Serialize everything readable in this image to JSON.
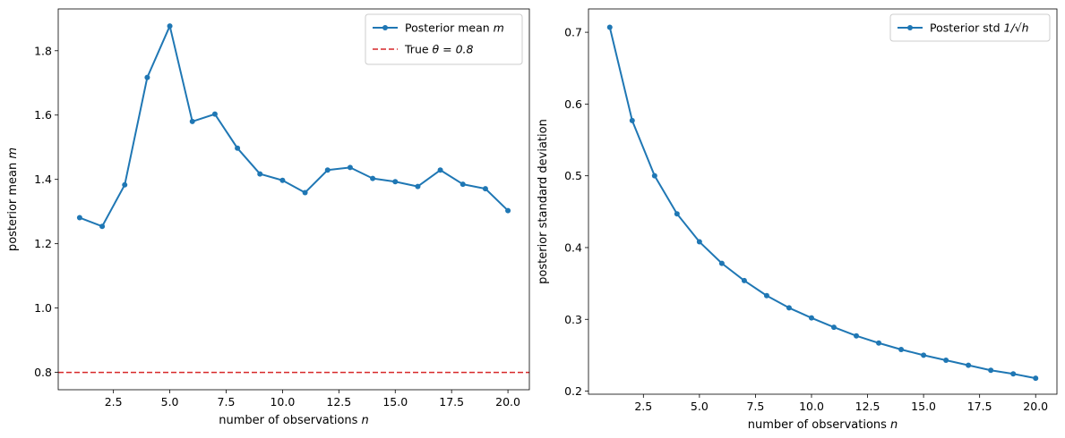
{
  "chart_data": [
    {
      "type": "line",
      "title": "",
      "xlabel": "number of observations",
      "xlabel_var": "n",
      "ylabel": "posterior mean",
      "ylabel_var": "m",
      "xlim": [
        0.05,
        20.95
      ],
      "ylim": [
        0.746,
        1.93
      ],
      "xticks": [
        2.5,
        5.0,
        7.5,
        10.0,
        12.5,
        15.0,
        17.5,
        20.0
      ],
      "xtick_labels": [
        "2.5",
        "5.0",
        "7.5",
        "10.0",
        "12.5",
        "15.0",
        "17.5",
        "20.0"
      ],
      "yticks": [
        0.8,
        1.0,
        1.2,
        1.4,
        1.6,
        1.8
      ],
      "ytick_labels": [
        "0.8",
        "1.0",
        "1.2",
        "1.4",
        "1.6",
        "1.8"
      ],
      "grid": false,
      "legend_position": "top-right",
      "series": [
        {
          "name": "Posterior mean m",
          "legend_text": "Posterior mean",
          "legend_var": "m",
          "color": "#1f77b4",
          "style": "solid-markers",
          "x": [
            1,
            2,
            3,
            4,
            5,
            6,
            7,
            8,
            9,
            10,
            11,
            12,
            13,
            14,
            15,
            16,
            17,
            18,
            19,
            20
          ],
          "values": [
            1.281,
            1.254,
            1.383,
            1.717,
            1.877,
            1.58,
            1.603,
            1.497,
            1.417,
            1.397,
            1.359,
            1.429,
            1.437,
            1.403,
            1.393,
            1.378,
            1.429,
            1.385,
            1.371,
            1.303
          ]
        }
      ],
      "hlines": [
        {
          "name": "True θ = 0.8",
          "legend_text": "True",
          "legend_var": "θ = 0.8",
          "y": 0.8,
          "color": "#d62728",
          "style": "dashed"
        }
      ]
    },
    {
      "type": "line",
      "title": "",
      "xlabel": "number of observations",
      "xlabel_var": "n",
      "ylabel": "posterior standard deviation",
      "xlim": [
        0.05,
        20.95
      ],
      "ylim": [
        0.1957,
        0.7325
      ],
      "xticks": [
        2.5,
        5.0,
        7.5,
        10.0,
        12.5,
        15.0,
        17.5,
        20.0
      ],
      "xtick_labels": [
        "2.5",
        "5.0",
        "7.5",
        "10.0",
        "12.5",
        "15.0",
        "17.5",
        "20.0"
      ],
      "yticks": [
        0.2,
        0.3,
        0.4,
        0.5,
        0.6,
        0.7
      ],
      "ytick_labels": [
        "0.2",
        "0.3",
        "0.4",
        "0.5",
        "0.6",
        "0.7"
      ],
      "grid": false,
      "legend_position": "top-right",
      "series": [
        {
          "name": "Posterior std 1/√h",
          "legend_text": "Posterior std",
          "legend_var": "1/√h",
          "color": "#1f77b4",
          "style": "solid-markers",
          "x": [
            1,
            2,
            3,
            4,
            5,
            6,
            7,
            8,
            9,
            10,
            11,
            12,
            13,
            14,
            15,
            16,
            17,
            18,
            19,
            20
          ],
          "values": [
            0.707,
            0.577,
            0.5,
            0.447,
            0.408,
            0.378,
            0.354,
            0.333,
            0.316,
            0.302,
            0.289,
            0.277,
            0.267,
            0.258,
            0.25,
            0.243,
            0.236,
            0.229,
            0.224,
            0.218
          ]
        }
      ]
    }
  ]
}
